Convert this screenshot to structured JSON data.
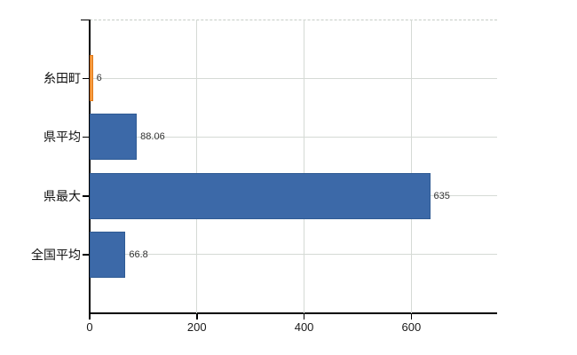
{
  "chart": {
    "background_color": "#ffffff",
    "axis_color": "#000000",
    "grid_color": "#d5dad5",
    "top_border_color": "#c6ccc6",
    "category_text_color": "#111111",
    "value_text_color": "#333333"
  },
  "chart_data": {
    "type": "bar",
    "orientation": "horizontal",
    "title": "",
    "xlabel": "",
    "ylabel": "",
    "categories": [
      "糸田町",
      "県平均",
      "県最大",
      "全国平均"
    ],
    "values": [
      6,
      88.06,
      635,
      66.8
    ],
    "value_labels": [
      "6",
      "88.06",
      "635",
      "66.8"
    ],
    "bar_fill_colors": [
      "#f59d42",
      "#3c69a8",
      "#3c69a8",
      "#3c69a8"
    ],
    "bar_border_colors": [
      "#e07818",
      "#2f5b94",
      "#2f5b94",
      "#2f5b94"
    ],
    "x_ticks": [
      0,
      200,
      400,
      600
    ],
    "x_tick_labels": [
      "0",
      "200",
      "400",
      "600"
    ],
    "xlim": [
      0,
      760
    ],
    "grid": "on",
    "legend": "none"
  }
}
